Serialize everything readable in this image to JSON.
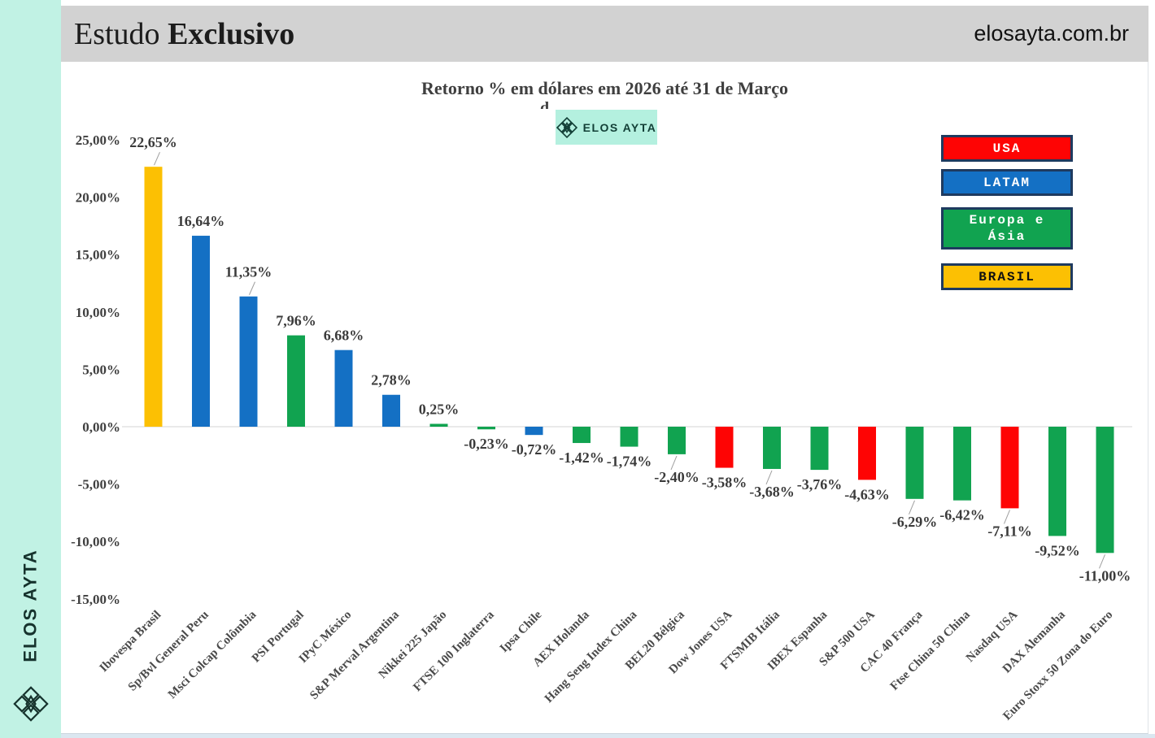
{
  "sidebar": {
    "brand": "ELOS AYTA"
  },
  "header": {
    "study_label_regular": "Estudo ",
    "study_label_bold": "Exclusivo",
    "website": "elosayta.com.br"
  },
  "watermark": {
    "text": "ELOS AYTA"
  },
  "chart_data": {
    "type": "bar",
    "title": "Retorno % em dólares em 2026 até 31 de Março",
    "title_line2_partial": "d",
    "xlabel": "",
    "ylabel": "",
    "ylim": [
      -15,
      25
    ],
    "grid": "zero-axis-line-only",
    "legend_position": "top-right",
    "y_tick_labels": [
      "25,00%",
      "20,00%",
      "15,00%",
      "10,00%",
      "5,00%",
      "0,00%",
      "-5,00%",
      "-10,00%",
      "-15,00%"
    ],
    "categories": [
      "Ibovespa Brasil",
      "Sp/Bvl General Peru",
      "Msci Colcap Colômbia",
      "PSI Portugal",
      "IPyC México",
      "S&P Merval Argentina",
      "Nikkei 225 Japão",
      "FTSE 100 Inglaterra",
      "Ipsa Chile",
      "AEX Holanda",
      "Hang Seng Index China",
      "BEL20 Bélgica",
      "Dow Jones USA",
      "FTSMIB Itália",
      "IBEX Espanha",
      "S&P 500 USA",
      "CAC 40 França",
      "Ftse China 50 China",
      "Nasdaq USA",
      "DAX Alemanha",
      "Euro Stoxx 50 Zona do Euro"
    ],
    "values": [
      22.65,
      16.64,
      11.35,
      7.96,
      6.68,
      2.78,
      0.25,
      -0.23,
      -0.72,
      -1.42,
      -1.74,
      -2.4,
      -3.58,
      -3.68,
      -3.76,
      -4.63,
      -6.29,
      -6.42,
      -7.11,
      -9.52,
      -11.0
    ],
    "value_labels": [
      "22,65%",
      "16,64%",
      "11,35%",
      "7,96%",
      "6,68%",
      "2,78%",
      "0,25%",
      "-0,23%",
      "-0,72%",
      "-1,42%",
      "-1,74%",
      "-2,40%",
      "-3,58%",
      "-3,68%",
      "-3,76%",
      "-4,63%",
      "-6,29%",
      "-6,42%",
      "-7,11%",
      "-9,52%",
      "-11,00%"
    ],
    "region_by_bar": [
      "BRASIL",
      "LATAM",
      "LATAM",
      "EUROPA_ASIA",
      "LATAM",
      "LATAM",
      "EUROPA_ASIA",
      "EUROPA_ASIA",
      "LATAM",
      "EUROPA_ASIA",
      "EUROPA_ASIA",
      "EUROPA_ASIA",
      "USA",
      "EUROPA_ASIA",
      "EUROPA_ASIA",
      "USA",
      "EUROPA_ASIA",
      "EUROPA_ASIA",
      "USA",
      "EUROPA_ASIA",
      "EUROPA_ASIA"
    ],
    "callout_leader_lines": [
      true,
      false,
      true,
      false,
      false,
      false,
      false,
      false,
      false,
      false,
      false,
      true,
      false,
      true,
      false,
      false,
      true,
      false,
      true,
      false,
      true
    ],
    "region_colors": {
      "USA": "#FE0404",
      "LATAM": "#1470C4",
      "EUROPA_ASIA": "#11A350",
      "BRASIL": "#FCC003"
    },
    "legend": [
      {
        "key": "USA",
        "label": "USA",
        "text_color": "#ffffff"
      },
      {
        "key": "LATAM",
        "label": "LATAM",
        "text_color": "#ffffff"
      },
      {
        "key": "EUROPA_ASIA",
        "label": "Europa e\nÁsia",
        "text_color": "#ffffff"
      },
      {
        "key": "BRASIL",
        "label": "BRASIL",
        "text_color": "#111111"
      }
    ],
    "legend_border_color": "#1e3a5f"
  }
}
